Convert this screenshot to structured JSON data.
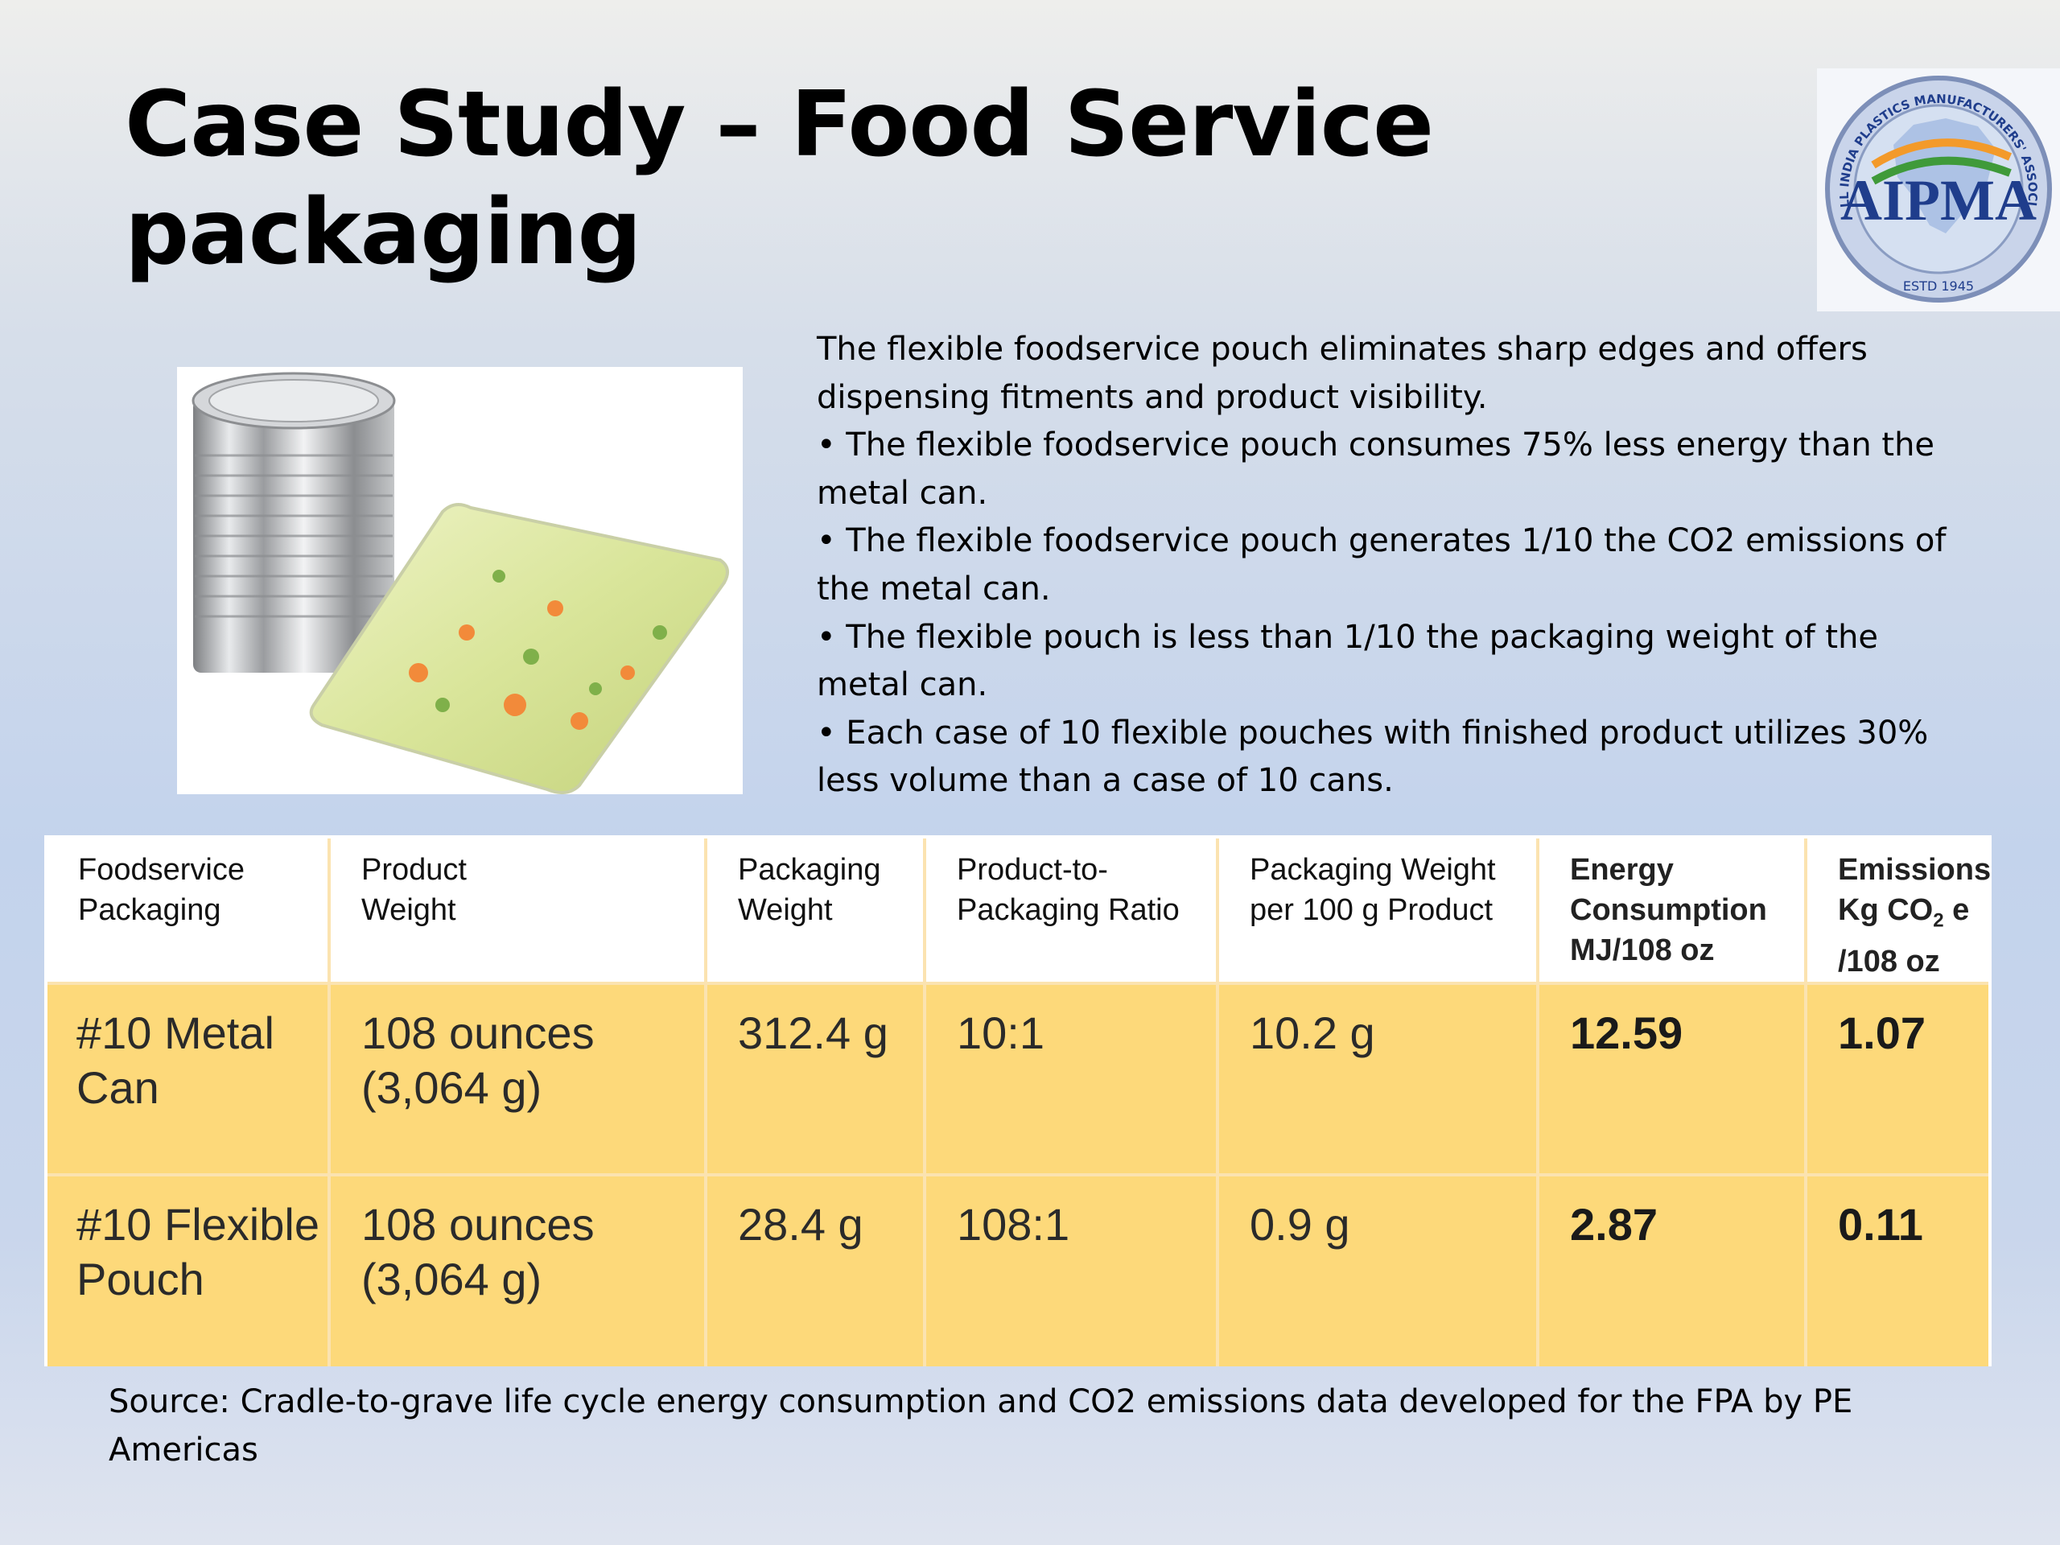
{
  "slide": {
    "title_line1": "Case Study – Food Service",
    "title_line2": "packaging"
  },
  "logo": {
    "name": "AIPMA",
    "ring_text": "THE ALL INDIA PLASTICS MANUFACTURERS' ASSOCIATION",
    "estd": "ESTD 1945"
  },
  "photo": {
    "icon": "metal-can-and-flexible-pouch-photo"
  },
  "body": {
    "intro": "The flexible foodservice pouch eliminates sharp edges and offers dispensing fitments and product visibility.",
    "bullets": [
      "• The flexible foodservice pouch consumes 75% less energy than the metal can.",
      "• The flexible foodservice pouch generates 1/10 the CO2 emissions of the metal can.",
      "• The flexible pouch is less than 1/10 the packaging weight of the metal can.",
      "• Each case of 10 flexible pouches with finished product utilizes 30% less volume than a case of 10 cans."
    ]
  },
  "table": {
    "headers": [
      [
        "Foodservice",
        "Packaging",
        ""
      ],
      [
        "Product",
        "Weight",
        ""
      ],
      [
        "Packaging",
        "Weight",
        ""
      ],
      [
        "Product-to-",
        "Packaging Ratio",
        ""
      ],
      [
        "Packaging Weight",
        "per 100 g Product",
        ""
      ],
      [
        "Energy",
        "Consumption",
        "MJ/108 oz"
      ],
      [
        "Emissions",
        "Kg CO",
        "2",
        " e",
        "/108 oz"
      ]
    ],
    "rows": [
      {
        "cells": [
          [
            "#10 Metal",
            "Can"
          ],
          [
            "108 ounces",
            "(3,064 g)"
          ],
          [
            "312.4 g",
            ""
          ],
          [
            "10:1",
            ""
          ],
          [
            "10.2 g",
            ""
          ],
          [
            "12.59",
            ""
          ],
          [
            "1.07",
            ""
          ]
        ]
      },
      {
        "cells": [
          [
            "#10 Flexible",
            "Pouch"
          ],
          [
            "108 ounces",
            "(3,064 g)"
          ],
          [
            "28.4 g",
            ""
          ],
          [
            "108:1",
            ""
          ],
          [
            "0.9 g",
            ""
          ],
          [
            "2.87",
            ""
          ],
          [
            "0.11",
            ""
          ]
        ]
      }
    ],
    "highlight_color": "#fdd97a"
  },
  "source": {
    "text": "Source: Cradle-to-grave life cycle energy consumption and CO2 emissions data developed for the FPA by PE Americas"
  }
}
